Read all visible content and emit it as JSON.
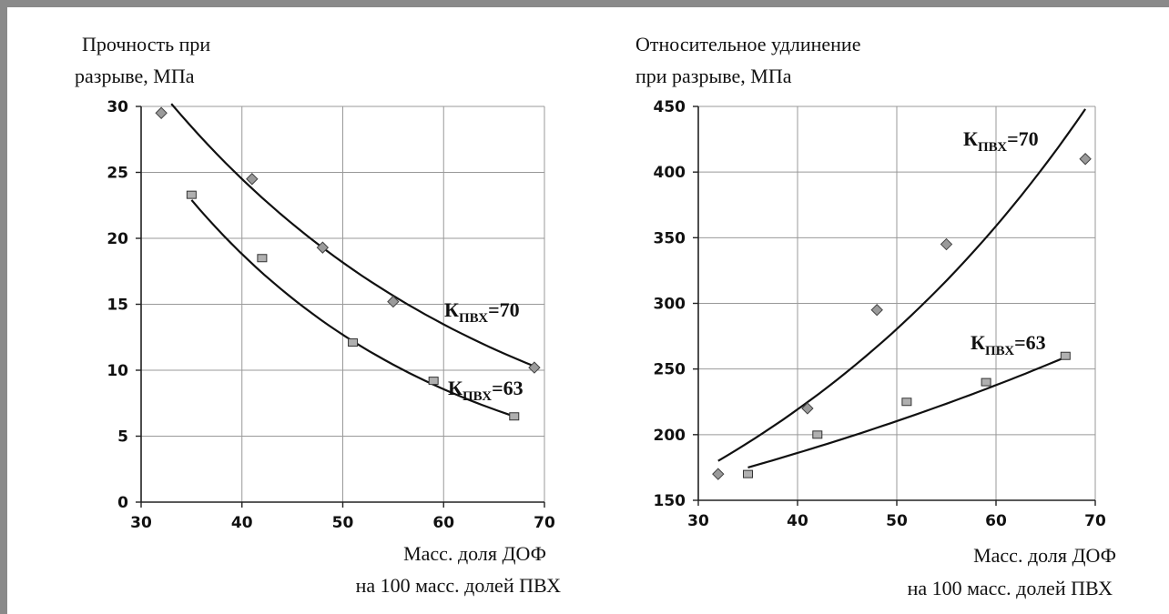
{
  "colors": {
    "frame": "#8a8a8a",
    "grid": "#999999",
    "axis": "#222222",
    "diamond": "#9a9a9a",
    "square": "#b0b0b0",
    "curve": "#111111"
  },
  "chart_data": [
    {
      "type": "scatter",
      "ylabel_lines": [
        "Прочность при",
        "разрыве, МПа"
      ],
      "xlabel_lines": [
        "Масс. доля ДОФ",
        "на 100 масс. долей ПВХ"
      ],
      "xlim": [
        30,
        70
      ],
      "ylim": [
        0,
        30
      ],
      "xticks": [
        30,
        40,
        50,
        60,
        70
      ],
      "yticks": [
        0,
        5,
        10,
        15,
        20,
        25,
        30
      ],
      "grid": true,
      "series": [
        {
          "name": "Кпвх=70",
          "label_main": "К",
          "label_sub": "ПВХ",
          "label_tail": "=70",
          "marker": "diamond",
          "x": [
            32,
            41,
            48,
            55,
            69
          ],
          "y": [
            29.5,
            24.5,
            19.3,
            15.2,
            10.2
          ],
          "trend": {
            "x": [
              33,
              69
            ],
            "y": [
              30.2,
              10.3
            ]
          }
        },
        {
          "name": "Кпвх=63",
          "label_main": "К",
          "label_sub": "ПВХ",
          "label_tail": "=63",
          "marker": "square",
          "x": [
            35,
            42,
            51,
            59,
            67
          ],
          "y": [
            23.3,
            18.5,
            12.1,
            9.2,
            6.5
          ],
          "trend": {
            "x": [
              35,
              67
            ],
            "y": [
              22.9,
              6.5
            ]
          }
        }
      ]
    },
    {
      "type": "scatter",
      "ylabel_lines": [
        "Относительное удлинение",
        "при разрыве, МПа"
      ],
      "xlabel_lines": [
        "Масс. доля ДОФ",
        "на 100 масс. долей ПВХ"
      ],
      "xlim": [
        30,
        70
      ],
      "ylim": [
        150,
        450
      ],
      "xticks": [
        30,
        40,
        50,
        60,
        70
      ],
      "yticks": [
        150,
        200,
        250,
        300,
        350,
        400,
        450
      ],
      "grid": true,
      "series": [
        {
          "name": "Кпвх=70",
          "label_main": "К",
          "label_sub": "ПВХ",
          "label_tail": "=70",
          "marker": "diamond",
          "x": [
            32,
            41,
            48,
            55,
            69
          ],
          "y": [
            170,
            220,
            295,
            345,
            410
          ],
          "trend": {
            "x": [
              32,
              69
            ],
            "y": [
              180,
              448
            ]
          }
        },
        {
          "name": "Кпвх=63",
          "label_main": "К",
          "label_sub": "ПВХ",
          "label_tail": "=63",
          "marker": "square",
          "x": [
            35,
            42,
            51,
            59,
            67
          ],
          "y": [
            170,
            200,
            225,
            240,
            260
          ],
          "trend": {
            "x": [
              35,
              67
            ],
            "y": [
              175,
              259
            ]
          }
        }
      ]
    }
  ]
}
